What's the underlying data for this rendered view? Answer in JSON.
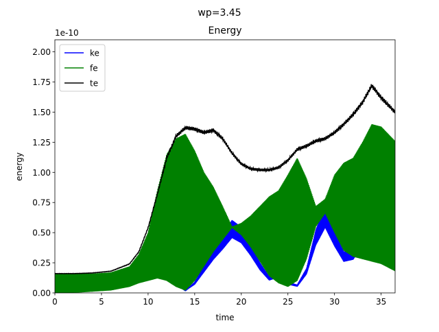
{
  "suptitle": "wp=3.45",
  "chart_data": {
    "type": "line",
    "title": "Energy",
    "xlabel": "time",
    "ylabel": "energy",
    "y_scale_label": "1e-10",
    "xlim": [
      0,
      36.5
    ],
    "ylim": [
      0,
      2.1
    ],
    "x_ticks": [
      0,
      5,
      10,
      15,
      20,
      25,
      30,
      35
    ],
    "x_tick_labels": [
      "0",
      "5",
      "10",
      "15",
      "20",
      "25",
      "30",
      "35"
    ],
    "y_ticks": [
      0,
      0.25,
      0.5,
      0.75,
      1.0,
      1.25,
      1.5,
      1.75,
      2.0
    ],
    "y_tick_labels": [
      "0.00",
      "0.25",
      "0.50",
      "0.75",
      "1.00",
      "1.25",
      "1.50",
      "1.75",
      "2.00"
    ],
    "legend_position": "top-left",
    "grid": false,
    "series": [
      {
        "name": "ke",
        "color": "#0000ff",
        "style": "oscillating band (mean line)",
        "x": [
          0,
          2,
          4,
          6,
          8,
          10,
          11,
          12,
          13,
          14,
          15,
          16,
          17,
          18,
          19,
          20,
          21,
          22,
          23,
          24,
          25,
          26,
          27,
          28,
          29,
          30,
          31,
          32,
          33,
          34,
          35,
          36.5
        ],
        "y": [
          0.08,
          0.08,
          0.08,
          0.09,
          0.12,
          0.14,
          0.17,
          0.16,
          0.08,
          0.02,
          0.08,
          0.2,
          0.32,
          0.42,
          0.53,
          0.48,
          0.36,
          0.22,
          0.12,
          0.15,
          0.08,
          0.06,
          0.18,
          0.46,
          0.63,
          0.45,
          0.3,
          0.32,
          0.46,
          0.55,
          0.58,
          0.62
        ]
      },
      {
        "name": "fe",
        "color": "#008000",
        "style": "oscillating band (envelope)",
        "x": [
          0,
          2,
          4,
          6,
          8,
          9,
          10,
          11,
          12,
          13,
          14,
          15,
          16,
          17,
          18,
          19,
          20,
          21,
          22,
          23,
          24,
          25,
          26,
          27,
          28,
          29,
          30,
          31,
          32,
          33,
          34,
          35,
          36.5
        ],
        "upper": [
          0.16,
          0.16,
          0.16,
          0.17,
          0.22,
          0.32,
          0.5,
          0.85,
          1.15,
          1.28,
          1.32,
          1.18,
          1.0,
          0.88,
          0.72,
          0.55,
          0.58,
          0.64,
          0.72,
          0.8,
          0.85,
          0.98,
          1.12,
          0.95,
          0.72,
          0.78,
          0.98,
          1.08,
          1.12,
          1.25,
          1.4,
          1.38,
          1.26
        ],
        "lower": [
          0.0,
          0.0,
          0.01,
          0.02,
          0.05,
          0.08,
          0.1,
          0.12,
          0.1,
          0.05,
          0.02,
          0.1,
          0.22,
          0.34,
          0.44,
          0.54,
          0.48,
          0.38,
          0.26,
          0.14,
          0.08,
          0.05,
          0.1,
          0.28,
          0.55,
          0.66,
          0.5,
          0.35,
          0.3,
          0.28,
          0.26,
          0.24,
          0.18
        ]
      },
      {
        "name": "te",
        "color": "#000000",
        "style": "line",
        "x": [
          0,
          2,
          4,
          6,
          8,
          9,
          10,
          11,
          12,
          13,
          14,
          15,
          16,
          17,
          18,
          19,
          20,
          21,
          22,
          23,
          24,
          25,
          26,
          27,
          28,
          29,
          30,
          31,
          32,
          33,
          34,
          35,
          36.5
        ],
        "y": [
          0.16,
          0.16,
          0.165,
          0.18,
          0.24,
          0.34,
          0.54,
          0.82,
          1.12,
          1.3,
          1.37,
          1.36,
          1.33,
          1.35,
          1.28,
          1.16,
          1.07,
          1.03,
          1.02,
          1.02,
          1.04,
          1.1,
          1.19,
          1.22,
          1.26,
          1.28,
          1.33,
          1.4,
          1.48,
          1.58,
          1.72,
          1.62,
          1.5
        ]
      }
    ]
  }
}
